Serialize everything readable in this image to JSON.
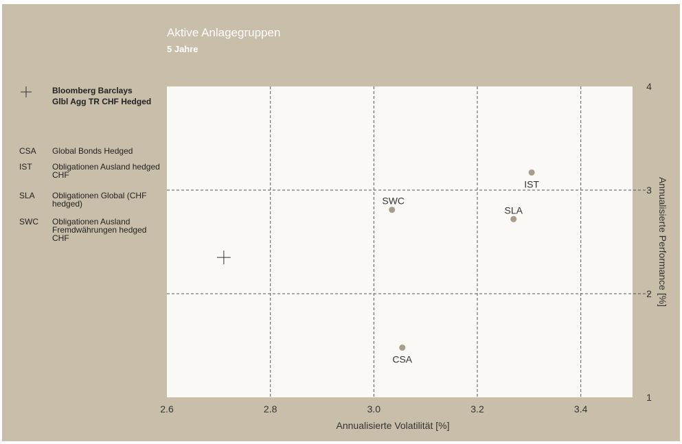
{
  "header": {
    "title": "Aktive Anlagegruppen",
    "subtitle": "5 Jahre"
  },
  "benchmark": {
    "symbol": "plus-icon",
    "label": "Bloomberg Barclays\nGlbl Agg TR CHF Hedged"
  },
  "legend": [
    {
      "code": "CSA",
      "label": "Global Bonds Hedged"
    },
    {
      "code": "IST",
      "label": "Obligationen Ausland hedged CHF"
    },
    {
      "code": "SLA",
      "label": "Obligationen Global (CHF hedged)"
    },
    {
      "code": "SWC",
      "label": "Obligationen Ausland Fremdwährungen hedged CHF"
    }
  ],
  "colors": {
    "background": "#c8bea9",
    "plot_area": "#faf9f6",
    "points": "#a69d8c",
    "grid": "#555555"
  },
  "chart_data": {
    "type": "scatter",
    "title": "Aktive Anlagegruppen",
    "subtitle": "5 Jahre",
    "xlabel": "Annualisierte Volatilität [%]",
    "ylabel": "Annualisierte Performance [%]",
    "xlim": [
      2.6,
      3.5
    ],
    "ylim": [
      1,
      4
    ],
    "xticks": [
      "2.6",
      "2.8",
      "3.0",
      "3.2",
      "3.4"
    ],
    "yticks": [
      "1",
      "2",
      "3",
      "4"
    ],
    "grid": true,
    "y_axis_side": "right",
    "points": [
      {
        "label": "CSA",
        "x": 3.055,
        "y": 1.48
      },
      {
        "label": "IST",
        "x": 3.305,
        "y": 3.17
      },
      {
        "label": "SLA",
        "x": 3.27,
        "y": 2.72
      },
      {
        "label": "SWC",
        "x": 3.035,
        "y": 2.81
      }
    ],
    "benchmark": {
      "x": 2.71,
      "y": 2.35
    }
  }
}
